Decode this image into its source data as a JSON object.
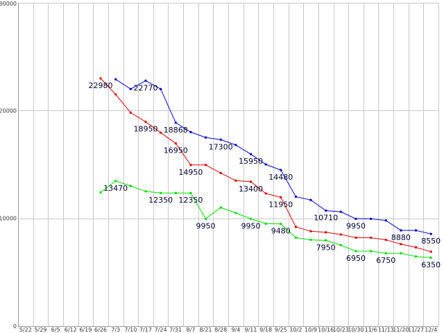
{
  "chart_data": {
    "type": "line",
    "title": "",
    "xlabel": "",
    "ylabel": "",
    "ylim": [
      0,
      30000
    ],
    "yticks": [
      0,
      10000,
      20000,
      30000
    ],
    "grid": true,
    "categories": [
      "5/22",
      "5/29",
      "6/5",
      "6/12",
      "6/19",
      "6/26",
      "7/3",
      "7/10",
      "7/17",
      "7/24",
      "7/31",
      "8/7",
      "8/21",
      "8/28",
      "9/4",
      "9/11",
      "9/18",
      "9/25",
      "10/2",
      "10/9",
      "10/16",
      "10/23",
      "10/30",
      "11/6",
      "11/13",
      "11/20",
      "11/27",
      "12/4"
    ],
    "tick_labels": [
      "5/22",
      "5/29",
      "6/5",
      "6/12",
      "6/19",
      "6/26",
      "7/3",
      "7/10",
      "7/17",
      "7/24",
      "7/31",
      "8/7",
      "8/21",
      "8/28",
      "9/4",
      "9/11",
      "9/18",
      "9/25",
      "10/2",
      "10/9",
      "10/16",
      "10/23",
      "10/30",
      "11/6",
      "11/13",
      "11/20",
      "11/27",
      "12/4"
    ],
    "series": [
      {
        "color": "#0000cc",
        "values": [
          null,
          null,
          null,
          null,
          null,
          null,
          22900,
          22000,
          22770,
          22000,
          18868,
          18000,
          17500,
          17300,
          16800,
          15950,
          15000,
          14480,
          12000,
          11700,
          10710,
          10600,
          9950,
          9950,
          9800,
          8880,
          8880,
          8550
        ]
      },
      {
        "color": "#dd0000",
        "values": [
          null,
          null,
          null,
          null,
          null,
          22980,
          21500,
          19800,
          18950,
          17950,
          16950,
          14950,
          14950,
          14200,
          13500,
          13400,
          12300,
          11950,
          9200,
          8800,
          8700,
          8500,
          8200,
          8200,
          8000,
          7600,
          7300,
          6900
        ]
      },
      {
        "color": "#00dd00",
        "values": [
          null,
          null,
          null,
          null,
          null,
          12400,
          13470,
          13000,
          12500,
          12350,
          12350,
          12350,
          9950,
          11000,
          10500,
          9950,
          9500,
          9480,
          8200,
          8000,
          7950,
          7500,
          6950,
          6950,
          6750,
          6750,
          6450,
          6350
        ]
      }
    ],
    "data_labels": [
      {
        "text": "22980",
        "series": 1,
        "index": 5
      },
      {
        "text": "22770",
        "series": 0,
        "index": 8
      },
      {
        "text": "18950",
        "series": 1,
        "index": 8
      },
      {
        "text": "18868",
        "series": 0,
        "index": 10
      },
      {
        "text": "16950",
        "series": 1,
        "index": 10
      },
      {
        "text": "17300",
        "series": 0,
        "index": 13
      },
      {
        "text": "14950",
        "series": 1,
        "index": 11
      },
      {
        "text": "15950",
        "series": 0,
        "index": 15
      },
      {
        "text": "14480",
        "series": 0,
        "index": 17
      },
      {
        "text": "13400",
        "series": 1,
        "index": 15
      },
      {
        "text": "11950",
        "series": 1,
        "index": 17
      },
      {
        "text": "10710",
        "series": 0,
        "index": 20
      },
      {
        "text": "9950",
        "series": 0,
        "index": 22
      },
      {
        "text": "8880",
        "series": 0,
        "index": 25
      },
      {
        "text": "8550",
        "series": 0,
        "index": 27
      },
      {
        "text": "13470",
        "series": 2,
        "index": 6
      },
      {
        "text": "12350",
        "series": 2,
        "index": 9
      },
      {
        "text": "12350",
        "series": 2,
        "index": 11
      },
      {
        "text": "9950",
        "series": 2,
        "index": 12
      },
      {
        "text": "9950",
        "series": 2,
        "index": 15
      },
      {
        "text": "9480",
        "series": 2,
        "index": 17
      },
      {
        "text": "7950",
        "series": 2,
        "index": 20
      },
      {
        "text": "6950",
        "series": 2,
        "index": 22
      },
      {
        "text": "6750",
        "series": 2,
        "index": 24
      },
      {
        "text": "6350",
        "series": 2,
        "index": 27
      }
    ]
  }
}
